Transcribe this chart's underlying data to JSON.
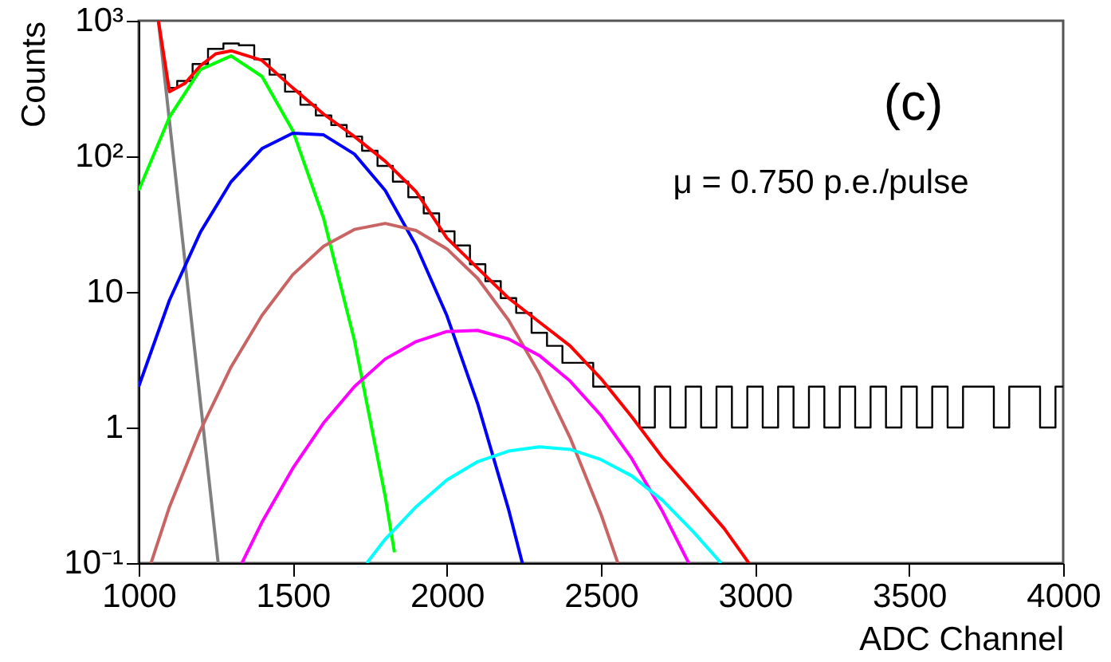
{
  "chart_data": {
    "type": "line",
    "xlabel": "ADC Channel",
    "ylabel": "Counts",
    "annotations": [
      "(c)",
      "μ = 0.750 p.e./pulse"
    ],
    "log": "y",
    "grid": false,
    "marker": "none",
    "line_style": "solid",
    "xlim": [
      1000,
      4000
    ],
    "xticks": [
      1000,
      1500,
      2000,
      2500,
      3000,
      3500,
      4000
    ],
    "ylim": [
      0.1,
      1000
    ],
    "yticks": [
      {
        "value": 0.1,
        "label": "10⁻¹"
      },
      1,
      10,
      {
        "value": 100,
        "label": "10²"
      },
      {
        "value": 1000,
        "label": "10³"
      }
    ],
    "series": [
      {
        "type": "step",
        "color": "#000000",
        "x": [
          1100,
          1150,
          1200,
          1250,
          1300,
          1350,
          1400,
          1450,
          1500,
          1550,
          1600,
          1650,
          1700,
          1750,
          1800,
          1850,
          1900,
          1950,
          2000,
          2050,
          2100,
          2150,
          2200,
          2250,
          2300,
          2350,
          2400,
          2450,
          2500,
          2550,
          2600,
          2650,
          2700,
          2750,
          2800,
          2850,
          2900,
          2950,
          3000,
          3050,
          3100,
          3150,
          3200,
          3250,
          3300,
          3350,
          3400,
          3450,
          3500,
          3550,
          3600,
          3650,
          3700,
          3750,
          3800,
          3850,
          3900,
          3950,
          4000
        ],
        "values": [
          320,
          360,
          480,
          620,
          680,
          660,
          520,
          400,
          300,
          240,
          200,
          170,
          140,
          110,
          85,
          65,
          50,
          38,
          28,
          22,
          16,
          12,
          9,
          7,
          5,
          4,
          3,
          3,
          2,
          2,
          2,
          1,
          2,
          1,
          2,
          1,
          2,
          1,
          2,
          1,
          2,
          1,
          2,
          1,
          2,
          1,
          2,
          1,
          2,
          1,
          2,
          1,
          2,
          2,
          1,
          2,
          2,
          1,
          2
        ]
      },
      {
        "color": "#808080",
        "x": [
          1064,
          1160,
          1258
        ],
        "values": [
          1000,
          10.5,
          0.1
        ]
      },
      {
        "color": "#00ff00",
        "x": [
          1000,
          1100,
          1200,
          1300,
          1400,
          1500,
          1600,
          1700,
          1800,
          1830
        ],
        "values": [
          56,
          195,
          436,
          550,
          389,
          155,
          35,
          4.4,
          0.31,
          0.12
        ]
      },
      {
        "color": "#0000ff",
        "x": [
          1000,
          1100,
          1200,
          1300,
          1400,
          1500,
          1600,
          1700,
          1800,
          1900,
          2000,
          2100,
          2200,
          2245
        ],
        "values": [
          2.0,
          8.7,
          27.5,
          65,
          114,
          148,
          144,
          104,
          56,
          22,
          6.7,
          1.5,
          0.25,
          0.1
        ]
      },
      {
        "color": "#c86464",
        "x": [
          1040,
          1100,
          1200,
          1300,
          1400,
          1500,
          1600,
          1700,
          1800,
          1900,
          2000,
          2100,
          2200,
          2300,
          2400,
          2500,
          2555
        ],
        "values": [
          0.1,
          0.26,
          0.95,
          2.8,
          6.7,
          13.4,
          21.7,
          28.9,
          32,
          28.4,
          20.8,
          12.6,
          6.2,
          2.5,
          0.84,
          0.23,
          0.1
        ]
      },
      {
        "color": "#ff00ff",
        "x": [
          1335,
          1400,
          1500,
          1600,
          1700,
          1800,
          1900,
          2000,
          2100,
          2200,
          2300,
          2400,
          2500,
          2600,
          2700,
          2785
        ],
        "values": [
          0.1,
          0.2,
          0.5,
          1.08,
          2.0,
          3.2,
          4.3,
          5.1,
          5.2,
          4.5,
          3.4,
          2.2,
          1.23,
          0.59,
          0.24,
          0.1
        ]
      },
      {
        "color": "#00ffff",
        "x": [
          1740,
          1800,
          1900,
          2000,
          2100,
          2200,
          2300,
          2400,
          2500,
          2600,
          2700,
          2800,
          2890
        ],
        "values": [
          0.1,
          0.15,
          0.26,
          0.41,
          0.56,
          0.67,
          0.72,
          0.69,
          0.58,
          0.44,
          0.29,
          0.17,
          0.1
        ]
      },
      {
        "color": "#ff0000",
        "x": [
          1064,
          1100,
          1150,
          1200,
          1250,
          1300,
          1400,
          1500,
          1600,
          1700,
          1800,
          1900,
          2000,
          2100,
          2200,
          2300,
          2400,
          2500,
          2600,
          2700,
          2800,
          2900,
          2980
        ],
        "values": [
          1000,
          300,
          345,
          465,
          570,
          600,
          510,
          320,
          205,
          140,
          92,
          55,
          25,
          15,
          9,
          6,
          4,
          2.3,
          1.2,
          0.6,
          0.33,
          0.18,
          0.1
        ]
      }
    ]
  }
}
